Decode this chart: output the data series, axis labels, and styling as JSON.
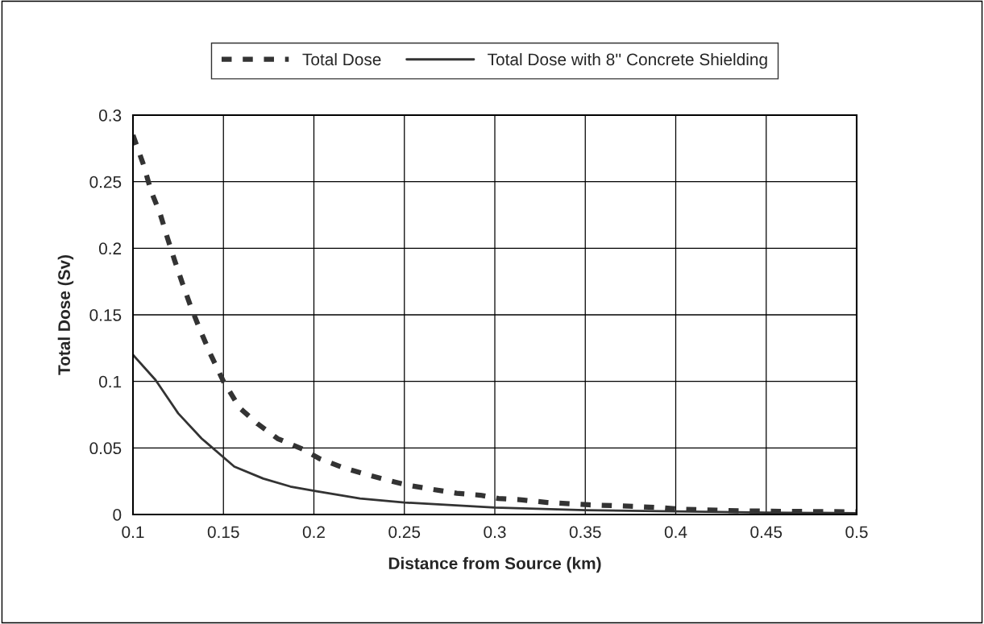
{
  "chart_data": {
    "type": "line",
    "xlabel": "Distance from Source (km)",
    "ylabel": "Total Dose (Sv)",
    "xlim": [
      0.1,
      0.5
    ],
    "xticks": [
      0.1,
      0.15,
      0.2,
      0.25,
      0.3,
      0.35,
      0.4,
      0.45,
      0.5
    ],
    "ylim": [
      0,
      0.3
    ],
    "yticks": [
      0,
      0.05,
      0.1,
      0.15,
      0.2,
      0.25,
      0.3
    ],
    "grid": true,
    "legend": "top",
    "marker": "none",
    "series": [
      {
        "name": "Total Dose",
        "color": "#333333",
        "line_style": "dashed",
        "x": [
          0.1,
          0.106,
          0.11,
          0.115,
          0.119,
          0.123,
          0.1275,
          0.132,
          0.137,
          0.143,
          0.15,
          0.159,
          0.169,
          0.18,
          0.194,
          0.203,
          0.2165,
          0.229,
          0.243,
          0.252,
          0.265,
          0.279,
          0.292,
          0.302,
          0.315,
          0.329,
          0.342,
          0.352,
          0.378,
          0.393,
          0.402,
          0.429,
          0.45,
          0.5
        ],
        "values": [
          0.285,
          0.262,
          0.243,
          0.226,
          0.208,
          0.191,
          0.173,
          0.156,
          0.139,
          0.12,
          0.1,
          0.08,
          0.068,
          0.057,
          0.049,
          0.042,
          0.035,
          0.03,
          0.025,
          0.022,
          0.019,
          0.016,
          0.0145,
          0.012,
          0.011,
          0.009,
          0.008,
          0.0073,
          0.006,
          0.005,
          0.004,
          0.003,
          0.0025,
          0.002
        ]
      },
      {
        "name": "Total Dose with 8'' Concrete Shielding",
        "color": "#333333",
        "line_style": "solid",
        "x": [
          0.1,
          0.1125,
          0.125,
          0.138,
          0.156,
          0.172,
          0.187,
          0.2015,
          0.2255,
          0.25,
          0.3,
          0.35,
          0.4,
          0.45,
          0.5
        ],
        "values": [
          0.12,
          0.101,
          0.076,
          0.057,
          0.036,
          0.027,
          0.021,
          0.0175,
          0.012,
          0.009,
          0.0052,
          0.0033,
          0.0024,
          0.0015,
          0.001
        ]
      }
    ]
  }
}
